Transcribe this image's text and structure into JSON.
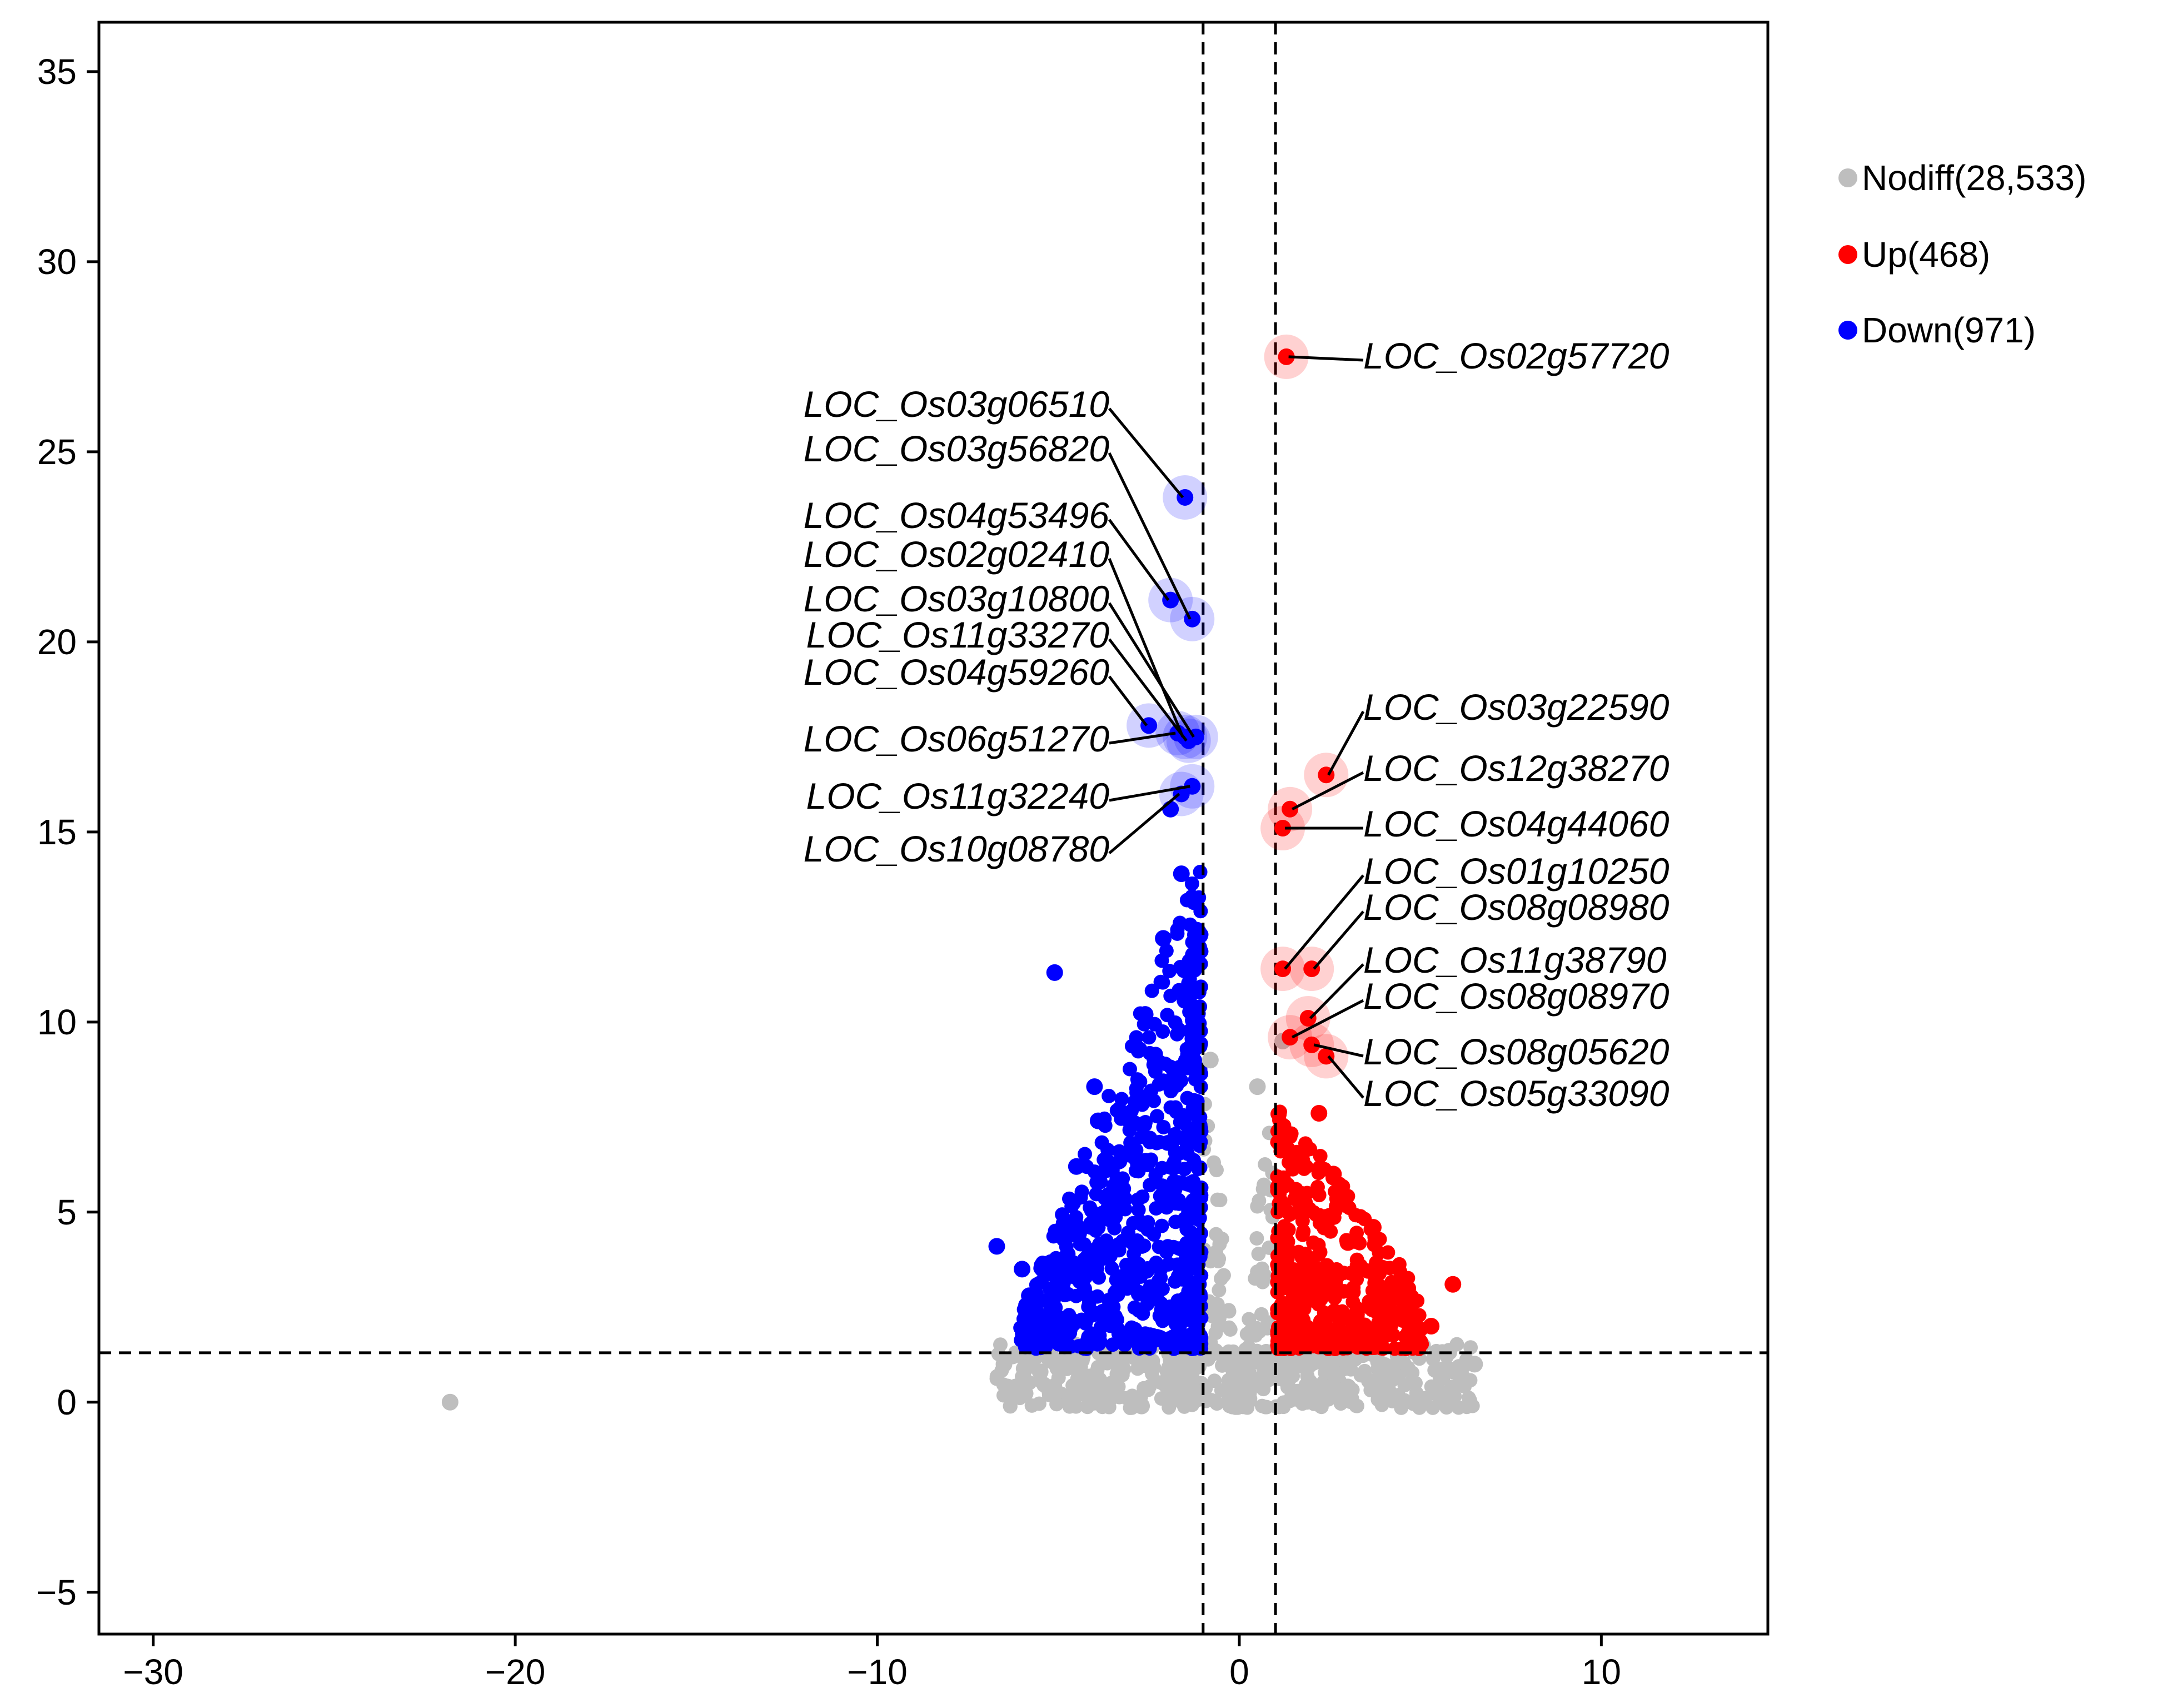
{
  "chart_data": {
    "type": "scatter",
    "title": "",
    "xlabel": "",
    "ylabel": "",
    "xlim": [
      -31.5,
      14.6
    ],
    "ylim": [
      -6.1,
      36.3
    ],
    "xticks": [
      -30,
      -20,
      -10,
      0,
      10
    ],
    "yticks": [
      -5,
      0,
      5,
      10,
      15,
      20,
      25,
      30,
      35
    ],
    "xtick_labels": [
      "−30",
      "−20",
      "−10",
      "0",
      "10"
    ],
    "ytick_labels": [
      "−5",
      "0",
      "5",
      "10",
      "15",
      "20",
      "25",
      "30",
      "35"
    ],
    "thresholds": {
      "x": [
        -1,
        1
      ],
      "y": 1.3,
      "style": "dashed"
    },
    "grid": false,
    "legend_position": "right",
    "series": [
      {
        "name": "Nodiff(28,533)",
        "color": "#bebebe",
        "count": 28533,
        "points": [
          [
            -21.8,
            0.0
          ],
          [
            -6.5,
            1.0
          ],
          [
            -4.0,
            0.0
          ],
          [
            -2.7,
            -0.1
          ],
          [
            6.5,
            1.0
          ],
          [
            1.2,
            9.5
          ],
          [
            0.5,
            8.3
          ],
          [
            -0.8,
            9.0
          ],
          [
            -5.5,
            0.8
          ],
          [
            -3.5,
            0.3
          ],
          [
            4.2,
            0.6
          ],
          [
            3.0,
            0.4
          ]
        ],
        "envelope": {
          "x_min": -6.7,
          "x_max": 6.6,
          "y_top_at_threshold": 9.5
        }
      },
      {
        "name": "Up(468)",
        "color": "#ff0000",
        "count": 468,
        "points": [
          [
            1.3,
            27.5
          ],
          [
            2.4,
            16.5
          ],
          [
            1.4,
            15.6
          ],
          [
            1.2,
            15.1
          ],
          [
            1.2,
            11.4
          ],
          [
            2.0,
            11.4
          ],
          [
            1.9,
            10.1
          ],
          [
            1.4,
            9.6
          ],
          [
            2.0,
            9.4
          ],
          [
            2.4,
            9.1
          ],
          [
            5.9,
            3.1
          ],
          [
            4.6,
            3.0
          ],
          [
            3.7,
            4.6
          ],
          [
            4.8,
            2.1
          ],
          [
            5.3,
            2.0
          ],
          [
            2.2,
            7.6
          ],
          [
            3.0,
            4.2
          ],
          [
            2.6,
            6.0
          ]
        ]
      },
      {
        "name": "Down(971)",
        "color": "#0000ff",
        "count": 971,
        "points": [
          [
            -1.5,
            23.8
          ],
          [
            -1.9,
            21.1
          ],
          [
            -1.3,
            20.6
          ],
          [
            -2.5,
            17.8
          ],
          [
            -1.7,
            17.6
          ],
          [
            -1.5,
            17.5
          ],
          [
            -1.4,
            17.4
          ],
          [
            -1.2,
            17.5
          ],
          [
            -1.3,
            16.2
          ],
          [
            -1.6,
            16.0
          ],
          [
            -1.9,
            15.6
          ],
          [
            -5.1,
            11.3
          ],
          [
            -4.0,
            8.3
          ],
          [
            -6.7,
            4.1
          ],
          [
            -6.0,
            3.5
          ],
          [
            -5.8,
            2.8
          ],
          [
            -4.8,
            3.8
          ],
          [
            -4.5,
            6.2
          ],
          [
            -3.9,
            7.4
          ],
          [
            -3.2,
            6.5
          ],
          [
            -2.6,
            10.2
          ],
          [
            -2.1,
            12.2
          ],
          [
            -1.6,
            13.9
          ]
        ]
      }
    ],
    "annotations": [
      {
        "label": "LOC_Os02g57720",
        "x": 1.3,
        "y": 27.5,
        "side": "right"
      },
      {
        "label": "LOC_Os03g06510",
        "x": -1.5,
        "y": 23.8,
        "side": "left"
      },
      {
        "label": "LOC_Os03g56820",
        "x": -1.3,
        "y": 20.6,
        "side": "left"
      },
      {
        "label": "LOC_Os04g53496",
        "x": -1.9,
        "y": 21.1,
        "side": "left"
      },
      {
        "label": "LOC_Os02g02410",
        "x": -1.5,
        "y": 17.5,
        "side": "left"
      },
      {
        "label": "LOC_Os03g10800",
        "x": -1.2,
        "y": 17.5,
        "side": "left"
      },
      {
        "label": "LOC_Os11g33270",
        "x": -1.4,
        "y": 17.4,
        "side": "left"
      },
      {
        "label": "LOC_Os04g59260",
        "x": -2.5,
        "y": 17.8,
        "side": "left"
      },
      {
        "label": "LOC_Os06g51270",
        "x": -1.7,
        "y": 17.6,
        "side": "left"
      },
      {
        "label": "LOC_Os11g32240",
        "x": -1.3,
        "y": 16.2,
        "side": "left"
      },
      {
        "label": "LOC_Os10g08780",
        "x": -1.6,
        "y": 16.0,
        "side": "left"
      },
      {
        "label": "LOC_Os03g22590",
        "x": 2.4,
        "y": 16.5,
        "side": "right"
      },
      {
        "label": "LOC_Os12g38270",
        "x": 1.4,
        "y": 15.6,
        "side": "right"
      },
      {
        "label": "LOC_Os04g44060",
        "x": 1.2,
        "y": 15.1,
        "side": "right"
      },
      {
        "label": "LOC_Os01g10250",
        "x": 1.2,
        "y": 11.4,
        "side": "right"
      },
      {
        "label": "LOC_Os08g08980",
        "x": 2.0,
        "y": 11.4,
        "side": "right"
      },
      {
        "label": "LOC_Os11g38790",
        "x": 1.9,
        "y": 10.1,
        "side": "right"
      },
      {
        "label": "LOC_Os08g08970",
        "x": 1.4,
        "y": 9.6,
        "side": "right"
      },
      {
        "label": "LOC_Os08g05620",
        "x": 2.0,
        "y": 9.4,
        "side": "right"
      },
      {
        "label": "LOC_Os05g33090",
        "x": 2.4,
        "y": 9.1,
        "side": "right"
      }
    ]
  }
}
